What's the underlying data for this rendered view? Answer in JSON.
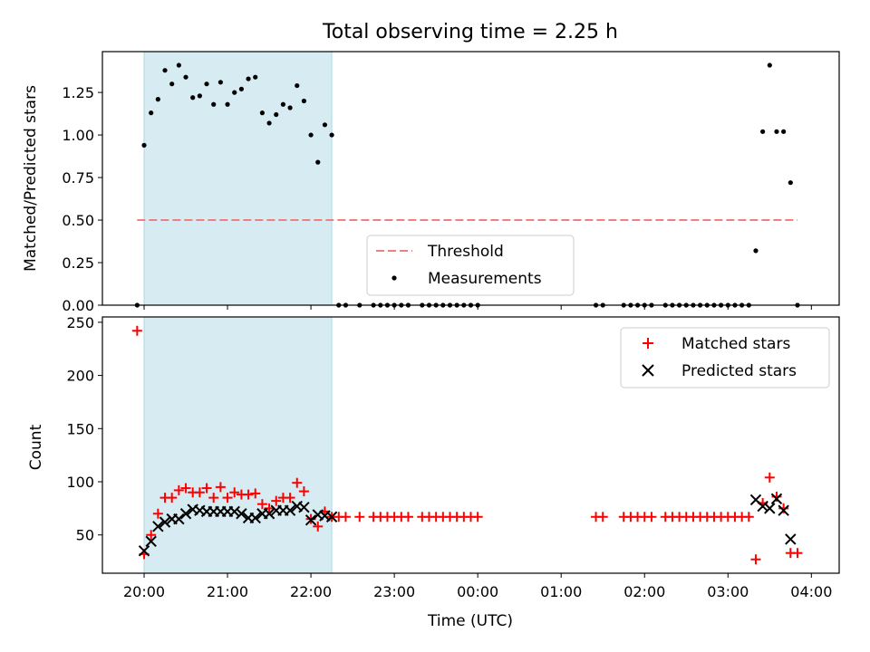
{
  "chart_data": [
    {
      "type": "scatter",
      "title": "Total observing time = 2.25 h",
      "ylabel": "Matched/Predicted stars",
      "xlabel": "",
      "ylim": [
        0,
        1.49
      ],
      "yticks": [
        "0.00",
        "0.25",
        "0.50",
        "0.75",
        "1.00",
        "1.25"
      ],
      "highlight_span": {
        "from": "20:00",
        "to": "22:15"
      },
      "threshold": {
        "name": "Threshold",
        "value": 0.5,
        "from": "19:55",
        "to": "03:50",
        "color": "#f08080"
      },
      "legend_position": "lower-center",
      "series": [
        {
          "name": "Measurements",
          "color": "#000000",
          "points": [
            [
              "19:55",
              0
            ],
            [
              "20:00",
              0.94
            ],
            [
              "20:05",
              1.13
            ],
            [
              "20:10",
              1.21
            ],
            [
              "20:15",
              1.38
            ],
            [
              "20:20",
              1.3
            ],
            [
              "20:25",
              1.41
            ],
            [
              "20:30",
              1.34
            ],
            [
              "20:35",
              1.22
            ],
            [
              "20:40",
              1.23
            ],
            [
              "20:45",
              1.3
            ],
            [
              "20:50",
              1.18
            ],
            [
              "20:55",
              1.31
            ],
            [
              "21:00",
              1.18
            ],
            [
              "21:05",
              1.25
            ],
            [
              "21:10",
              1.27
            ],
            [
              "21:15",
              1.33
            ],
            [
              "21:20",
              1.34
            ],
            [
              "21:25",
              1.13
            ],
            [
              "21:30",
              1.07
            ],
            [
              "21:35",
              1.12
            ],
            [
              "21:40",
              1.18
            ],
            [
              "21:45",
              1.16
            ],
            [
              "21:50",
              1.29
            ],
            [
              "21:55",
              1.2
            ],
            [
              "22:00",
              1.0
            ],
            [
              "22:05",
              0.84
            ],
            [
              "22:10",
              1.06
            ],
            [
              "22:15",
              1.0
            ],
            [
              "22:20",
              0
            ],
            [
              "22:25",
              0
            ],
            [
              "22:35",
              0
            ],
            [
              "22:45",
              0
            ],
            [
              "22:50",
              0
            ],
            [
              "22:55",
              0
            ],
            [
              "23:00",
              0
            ],
            [
              "23:05",
              0
            ],
            [
              "23:10",
              0
            ],
            [
              "23:20",
              0
            ],
            [
              "23:25",
              0
            ],
            [
              "23:30",
              0
            ],
            [
              "23:35",
              0
            ],
            [
              "23:40",
              0
            ],
            [
              "23:45",
              0
            ],
            [
              "23:50",
              0
            ],
            [
              "23:55",
              0
            ],
            [
              "00:00",
              0
            ],
            [
              "01:25",
              0
            ],
            [
              "01:30",
              0
            ],
            [
              "01:45",
              0
            ],
            [
              "01:50",
              0
            ],
            [
              "01:55",
              0
            ],
            [
              "02:00",
              0
            ],
            [
              "02:05",
              0
            ],
            [
              "02:15",
              0
            ],
            [
              "02:20",
              0
            ],
            [
              "02:25",
              0
            ],
            [
              "02:30",
              0
            ],
            [
              "02:35",
              0
            ],
            [
              "02:40",
              0
            ],
            [
              "02:45",
              0
            ],
            [
              "02:50",
              0
            ],
            [
              "02:55",
              0
            ],
            [
              "03:00",
              0
            ],
            [
              "03:05",
              0
            ],
            [
              "03:10",
              0
            ],
            [
              "03:15",
              0
            ],
            [
              "03:20",
              0.32
            ],
            [
              "03:25",
              1.02
            ],
            [
              "03:30",
              1.41
            ],
            [
              "03:35",
              1.02
            ],
            [
              "03:40",
              1.02
            ],
            [
              "03:45",
              0.72
            ],
            [
              "03:50",
              0
            ]
          ]
        }
      ]
    },
    {
      "type": "scatter",
      "xlabel": "Time (UTC)",
      "ylabel": "Count",
      "ylim": [
        14,
        255
      ],
      "yticks": [
        "50",
        "100",
        "150",
        "200",
        "250"
      ],
      "xlim": [
        "19:30",
        "04:20"
      ],
      "xticks": [
        "20:00",
        "21:00",
        "22:00",
        "23:00",
        "00:00",
        "01:00",
        "02:00",
        "03:00",
        "04:00"
      ],
      "highlight_span": {
        "from": "20:00",
        "to": "22:15"
      },
      "legend_position": "upper-right",
      "series": [
        {
          "name": "Matched stars",
          "marker": "+",
          "color": "#ff0000",
          "points": [
            [
              "19:55",
              242
            ],
            [
              "20:00",
              32
            ],
            [
              "20:05",
              50
            ],
            [
              "20:10",
              70
            ],
            [
              "20:15",
              85
            ],
            [
              "20:20",
              85
            ],
            [
              "20:25",
              92
            ],
            [
              "20:30",
              94
            ],
            [
              "20:35",
              90
            ],
            [
              "20:40",
              90
            ],
            [
              "20:45",
              94
            ],
            [
              "20:50",
              85
            ],
            [
              "20:55",
              95
            ],
            [
              "21:00",
              85
            ],
            [
              "21:05",
              90
            ],
            [
              "21:10",
              88
            ],
            [
              "21:15",
              88
            ],
            [
              "21:20",
              89
            ],
            [
              "21:25",
              79
            ],
            [
              "21:30",
              75
            ],
            [
              "21:35",
              82
            ],
            [
              "21:40",
              85
            ],
            [
              "21:45",
              85
            ],
            [
              "21:50",
              99
            ],
            [
              "21:55",
              91
            ],
            [
              "22:00",
              65
            ],
            [
              "22:05",
              58
            ],
            [
              "22:10",
              72
            ],
            [
              "22:15",
              67
            ],
            [
              "22:20",
              67
            ],
            [
              "22:25",
              67
            ],
            [
              "22:35",
              67
            ],
            [
              "22:45",
              67
            ],
            [
              "22:50",
              67
            ],
            [
              "22:55",
              67
            ],
            [
              "23:00",
              67
            ],
            [
              "23:05",
              67
            ],
            [
              "23:10",
              67
            ],
            [
              "23:20",
              67
            ],
            [
              "23:25",
              67
            ],
            [
              "23:30",
              67
            ],
            [
              "23:35",
              67
            ],
            [
              "23:40",
              67
            ],
            [
              "23:45",
              67
            ],
            [
              "23:50",
              67
            ],
            [
              "23:55",
              67
            ],
            [
              "00:00",
              67
            ],
            [
              "01:25",
              67
            ],
            [
              "01:30",
              67
            ],
            [
              "01:45",
              67
            ],
            [
              "01:50",
              67
            ],
            [
              "01:55",
              67
            ],
            [
              "02:00",
              67
            ],
            [
              "02:05",
              67
            ],
            [
              "02:15",
              67
            ],
            [
              "02:20",
              67
            ],
            [
              "02:25",
              67
            ],
            [
              "02:30",
              67
            ],
            [
              "02:35",
              67
            ],
            [
              "02:40",
              67
            ],
            [
              "02:45",
              67
            ],
            [
              "02:50",
              67
            ],
            [
              "02:55",
              67
            ],
            [
              "03:00",
              67
            ],
            [
              "03:05",
              67
            ],
            [
              "03:10",
              67
            ],
            [
              "03:15",
              67
            ],
            [
              "03:20",
              27
            ],
            [
              "03:25",
              80
            ],
            [
              "03:30",
              104
            ],
            [
              "03:35",
              86
            ],
            [
              "03:40",
              75
            ],
            [
              "03:45",
              33
            ],
            [
              "03:50",
              33
            ]
          ]
        },
        {
          "name": "Predicted stars",
          "marker": "x",
          "color": "#000000",
          "points": [
            [
              "20:00",
              35
            ],
            [
              "20:05",
              44
            ],
            [
              "20:10",
              58
            ],
            [
              "20:15",
              62
            ],
            [
              "20:20",
              65
            ],
            [
              "20:25",
              65
            ],
            [
              "20:30",
              70
            ],
            [
              "20:35",
              74
            ],
            [
              "20:40",
              73
            ],
            [
              "20:45",
              72
            ],
            [
              "20:50",
              72
            ],
            [
              "20:55",
              72
            ],
            [
              "21:00",
              72
            ],
            [
              "21:05",
              72
            ],
            [
              "21:10",
              70
            ],
            [
              "21:15",
              66
            ],
            [
              "21:20",
              66
            ],
            [
              "21:25",
              70
            ],
            [
              "21:30",
              70
            ],
            [
              "21:35",
              73
            ],
            [
              "21:40",
              73
            ],
            [
              "21:45",
              73
            ],
            [
              "21:50",
              77
            ],
            [
              "21:55",
              76
            ],
            [
              "22:00",
              64
            ],
            [
              "22:05",
              69
            ],
            [
              "22:10",
              68
            ],
            [
              "22:15",
              67
            ],
            [
              "03:20",
              83
            ],
            [
              "03:25",
              77
            ],
            [
              "03:30",
              75
            ],
            [
              "03:35",
              84
            ],
            [
              "03:40",
              73
            ],
            [
              "03:45",
              46
            ]
          ]
        }
      ]
    }
  ]
}
